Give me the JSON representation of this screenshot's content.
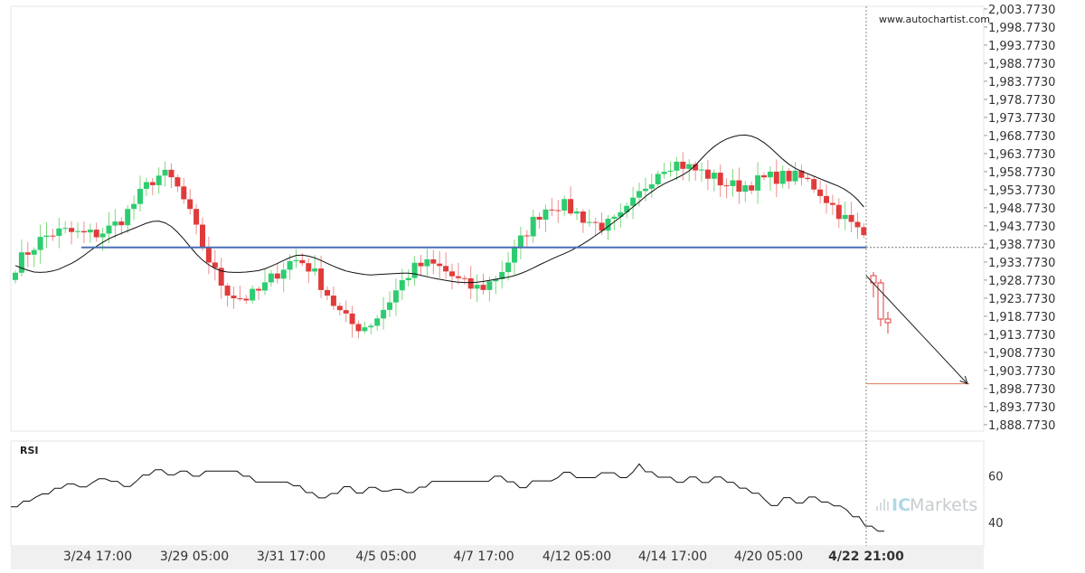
{
  "watermark": "www.autochartist.com",
  "brand": {
    "prefix": "IC",
    "name": "Markets"
  },
  "colors": {
    "up": "#2ecc71",
    "up_light": "#7dd87d",
    "down": "#e03b3b",
    "down_light": "#ee8f8f",
    "level_line": "#4a6fb5",
    "target_line": "#e0775a",
    "ma_line": "#111111",
    "rsi_line": "#111111",
    "bg_panel": "#ffffff",
    "axis_bg": "#f0f0f0"
  },
  "chart_data": {
    "type": "candlestick",
    "price_axis": {
      "ylim": [
        1887.0,
        2004.5
      ],
      "ticks": [
        "2,003.7730",
        "1,998.7730",
        "1,993.7730",
        "1,988.7730",
        "1,983.7730",
        "1,978.7730",
        "1,973.7730",
        "1,968.7730",
        "1,963.7730",
        "1,958.7730",
        "1,953.7730",
        "1,948.7730",
        "1,943.7730",
        "1,938.7730",
        "1,933.7730",
        "1,928.7730",
        "1,923.7730",
        "1,918.7730",
        "1,913.7730",
        "1,908.7730",
        "1,903.7730",
        "1,898.7730",
        "1,893.7730",
        "1,888.7730"
      ]
    },
    "x_ticks": [
      "3/24 17:00",
      "3/29 05:00",
      "3/31 17:00",
      "4/5 05:00",
      "4/7 17:00",
      "4/12 05:00",
      "4/14 17:00",
      "4/20 05:00",
      "4/22 21:00"
    ],
    "current_time_label": "4/22 21:00",
    "resistance_level": 1937.8,
    "target_level": 1900.1,
    "projection": {
      "from": 1930.0,
      "to": 1900.1
    },
    "ma_series": [
      1932.8,
      1932.1,
      1931.5,
      1931.0,
      1930.9,
      1931.0,
      1931.3,
      1931.8,
      1932.6,
      1933.4,
      1934.4,
      1935.6,
      1936.9,
      1938.1,
      1939.2,
      1940.2,
      1941.0,
      1941.7,
      1942.4,
      1943.1,
      1943.8,
      1944.5,
      1945.0,
      1945.1,
      1944.6,
      1943.6,
      1942.0,
      1940.1,
      1938.0,
      1936.0,
      1934.3,
      1933.0,
      1932.0,
      1931.3,
      1931.0,
      1930.9,
      1930.9,
      1931.0,
      1931.2,
      1931.4,
      1931.9,
      1932.6,
      1933.4,
      1934.2,
      1935.0,
      1935.6,
      1935.7,
      1935.4,
      1934.9,
      1934.2,
      1933.4,
      1932.6,
      1931.9,
      1931.3,
      1930.9,
      1930.6,
      1930.3,
      1930.2,
      1930.3,
      1930.4,
      1930.5,
      1930.6,
      1930.7,
      1930.7,
      1930.5,
      1930.1,
      1929.7,
      1929.3,
      1929.0,
      1928.7,
      1928.4,
      1928.2,
      1928.1,
      1928.1,
      1928.2,
      1928.4,
      1928.7,
      1929.0,
      1929.3,
      1929.6,
      1930.0,
      1930.6,
      1931.3,
      1932.1,
      1933.0,
      1933.8,
      1934.6,
      1935.4,
      1936.1,
      1936.9,
      1937.8,
      1938.8,
      1939.9,
      1941.1,
      1942.3,
      1943.6,
      1944.9,
      1946.2,
      1947.6,
      1949.0,
      1950.4,
      1951.9,
      1953.2,
      1954.4,
      1955.4,
      1956.2,
      1957.0,
      1957.9,
      1959.0,
      1960.5,
      1962.4,
      1964.2,
      1965.7,
      1966.9,
      1967.8,
      1968.4,
      1968.8,
      1968.9,
      1968.6,
      1967.9,
      1966.8,
      1965.4,
      1963.8,
      1962.2,
      1960.8,
      1959.7,
      1958.9,
      1958.2,
      1957.5,
      1956.8,
      1956.1,
      1955.4,
      1954.7,
      1953.8,
      1952.6,
      1951.0,
      1949.0
    ],
    "rsi_axis": {
      "ylim": [
        30,
        75
      ],
      "ticks": [
        60,
        40
      ]
    },
    "rsi_series": [
      46.8,
      46.8,
      49.2,
      49.2,
      51.0,
      52.3,
      52.3,
      54.7,
      54.7,
      56.6,
      56.6,
      55.3,
      55.3,
      57.2,
      58.8,
      58.8,
      57.7,
      57.7,
      55.5,
      55.5,
      57.8,
      60.4,
      60.4,
      62.7,
      62.7,
      60.5,
      60.5,
      62.1,
      62.1,
      59.9,
      59.9,
      62.1,
      62.1,
      62.1,
      62.1,
      62.1,
      62.1,
      59.9,
      59.9,
      57.4,
      57.4,
      57.4,
      57.4,
      57.4,
      57.4,
      55.8,
      55.8,
      52.9,
      52.9,
      50.6,
      50.6,
      52.5,
      52.5,
      55.4,
      55.4,
      52.7,
      52.7,
      55.1,
      55.1,
      53.5,
      53.5,
      54.3,
      54.3,
      52.9,
      52.9,
      55.2,
      55.2,
      57.7,
      57.7,
      57.7,
      57.7,
      57.7,
      57.7,
      57.7,
      57.7,
      57.7,
      57.7,
      59.9,
      59.9,
      57.5,
      57.5,
      55.0,
      55.0,
      57.9,
      57.9,
      57.9,
      57.9,
      59.2,
      61.6,
      61.6,
      59.3,
      59.3,
      59.3,
      59.3,
      61.4,
      61.4,
      61.4,
      59.3,
      59.3,
      61.7,
      65.2,
      61.8,
      61.8,
      59.5,
      59.5,
      59.5,
      57.3,
      57.3,
      59.6,
      59.6,
      57.2,
      57.2,
      59.6,
      59.6,
      57.3,
      57.3,
      54.8,
      54.8,
      52.6,
      52.6,
      49.8,
      47.3,
      47.3,
      50.7,
      50.7,
      48.4,
      48.4,
      51.0,
      51.0,
      48.8,
      48.8,
      47.2,
      47.2,
      45.5,
      42.5,
      42.5,
      38.5,
      38.5,
      36.3,
      36.3
    ]
  }
}
